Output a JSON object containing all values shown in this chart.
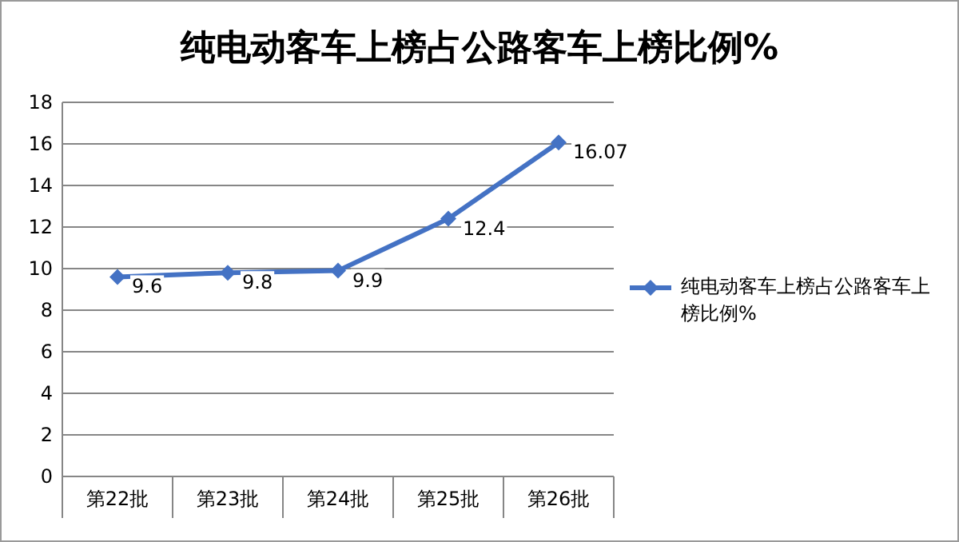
{
  "chart_data": {
    "type": "line",
    "title": "纯电动客车上榜占公路客车上榜比例%",
    "categories": [
      "第22批",
      "第23批",
      "第24批",
      "第25批",
      "第26批"
    ],
    "series": [
      {
        "name": "纯电动客车上榜占公路客车上榜比例%",
        "color": "#4472c4",
        "values": [
          9.6,
          9.8,
          9.9,
          12.4,
          16.07
        ]
      }
    ],
    "ylim": [
      0,
      18
    ],
    "yticks": [
      0,
      2,
      4,
      6,
      8,
      10,
      12,
      14,
      16,
      18
    ],
    "grid": "y",
    "legend": "right",
    "marker": "diamond",
    "data_labels": true
  }
}
